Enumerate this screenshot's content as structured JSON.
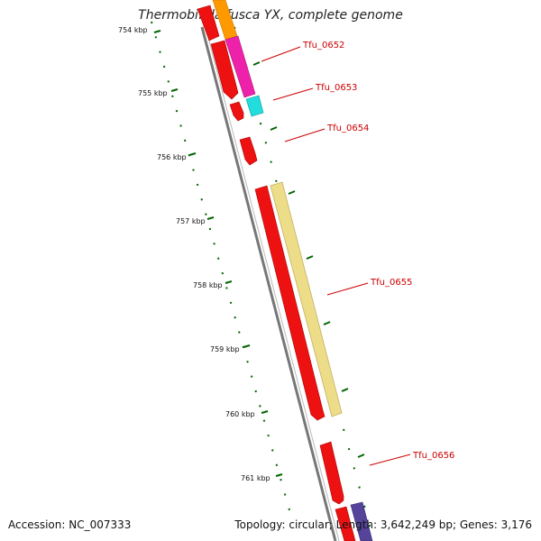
{
  "title": "Thermobifida fusca YX, complete genome",
  "footer": {
    "accession": "Accession: NC_007333",
    "stats": "Topology: circular; Length: 3,642,249 bp; Genes: 3,176"
  },
  "axis_ticks": [
    "754 kbp",
    "755 kbp",
    "756 kbp",
    "757 kbp",
    "758 kbp",
    "759 kbp",
    "760 kbp",
    "761 kbp"
  ],
  "gene_labels": [
    "Tfu_0652",
    "Tfu_0653",
    "Tfu_0654",
    "Tfu_0655",
    "Tfu_0656"
  ],
  "colors": {
    "backbone": "#888888",
    "forward_gene": "#ee1111",
    "cds_orange": "#ff9900",
    "cds_magenta": "#ee22aa",
    "cds_cyan": "#22dddd",
    "cds_yellow": "#eedd88",
    "cds_purple": "#554499",
    "tick_color": "#006600",
    "label_color": "#cc0000"
  }
}
